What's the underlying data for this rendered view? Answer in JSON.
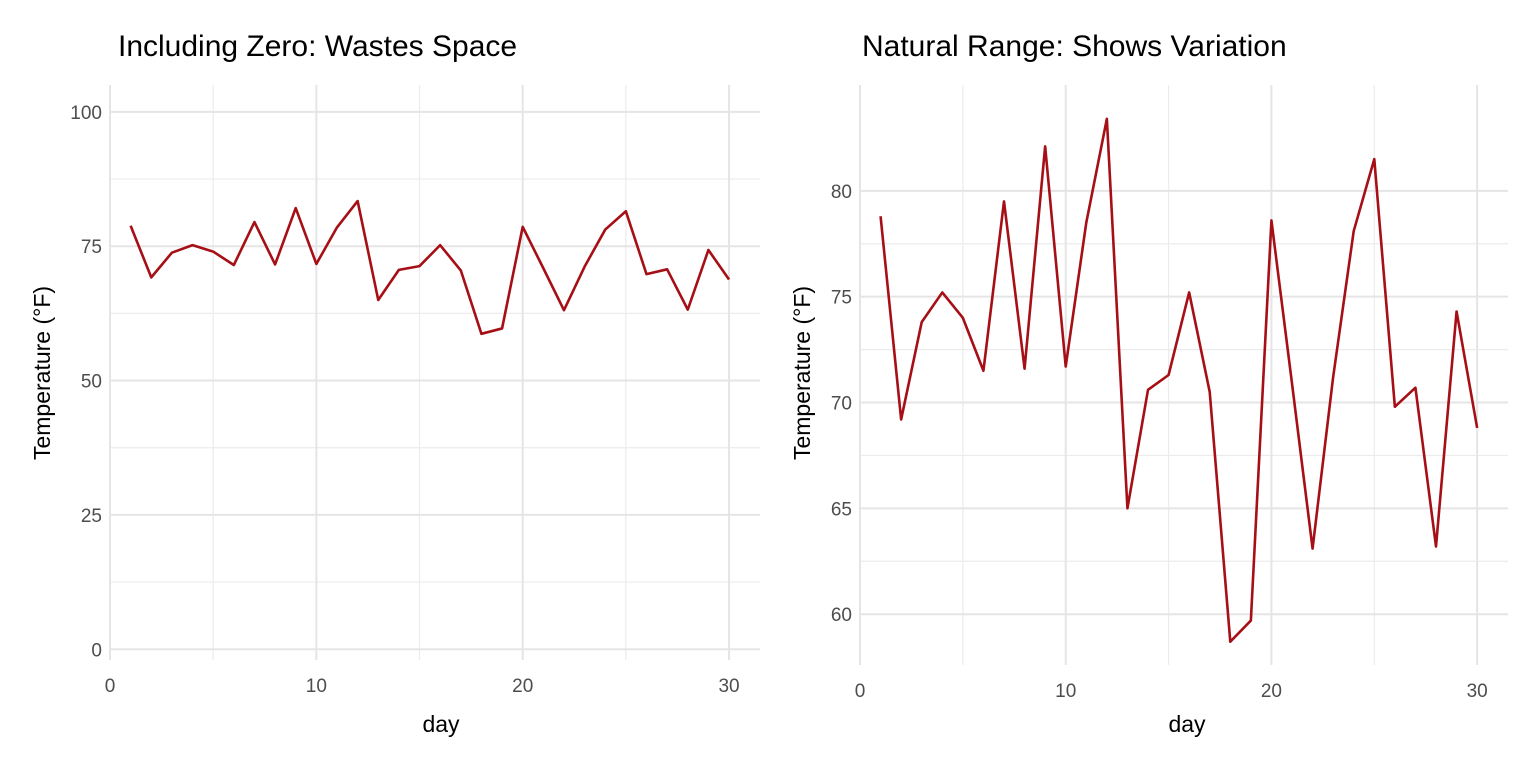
{
  "chart_data": [
    {
      "type": "line",
      "title": "Including Zero: Wastes Space",
      "xlabel": "day",
      "ylabel": "Temperature (°F)",
      "xlim": [
        0,
        31.5
      ],
      "ylim": [
        -2,
        105
      ],
      "xticks": [
        0,
        10,
        20,
        30
      ],
      "yticks": [
        0,
        25,
        50,
        75,
        100
      ],
      "grid": true,
      "color": "#a50f15",
      "x": [
        1,
        2,
        3,
        4,
        5,
        6,
        7,
        8,
        9,
        10,
        11,
        12,
        13,
        14,
        15,
        16,
        17,
        18,
        19,
        20,
        21,
        22,
        23,
        24,
        25,
        26,
        27,
        28,
        29,
        30
      ],
      "y": [
        78.8,
        69.2,
        73.8,
        75.2,
        74.0,
        71.5,
        79.5,
        71.6,
        82.1,
        71.7,
        78.5,
        83.4,
        65.0,
        70.6,
        71.3,
        75.2,
        70.5,
        58.7,
        59.7,
        78.6,
        70.9,
        63.1,
        71.2,
        78.1,
        81.5,
        69.8,
        70.7,
        63.2,
        74.3,
        68.8
      ]
    },
    {
      "type": "line",
      "title": "Natural Range: Shows Variation",
      "xlabel": "day",
      "ylabel": "Temperature (°F)",
      "xlim": [
        0,
        31.5
      ],
      "ylim": [
        57.6,
        85
      ],
      "xticks": [
        0,
        10,
        20,
        30
      ],
      "yticks": [
        60,
        65,
        70,
        75,
        80
      ],
      "grid": true,
      "color": "#a50f15",
      "x": [
        1,
        2,
        3,
        4,
        5,
        6,
        7,
        8,
        9,
        10,
        11,
        12,
        13,
        14,
        15,
        16,
        17,
        18,
        19,
        20,
        21,
        22,
        23,
        24,
        25,
        26,
        27,
        28,
        29,
        30
      ],
      "y": [
        78.8,
        69.2,
        73.8,
        75.2,
        74.0,
        71.5,
        79.5,
        71.6,
        82.1,
        71.7,
        78.5,
        83.4,
        65.0,
        70.6,
        71.3,
        75.2,
        70.5,
        58.7,
        59.7,
        78.6,
        70.9,
        63.1,
        71.2,
        78.1,
        81.5,
        69.8,
        70.7,
        63.2,
        74.3,
        68.8
      ]
    }
  ]
}
